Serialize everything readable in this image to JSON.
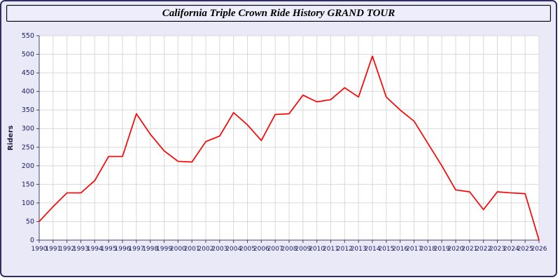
{
  "window": {
    "title": "California Triple Crown Ride History GRAND TOUR"
  },
  "chart_data": {
    "type": "line",
    "title": "California Triple Crown Ride History GRAND TOUR",
    "xlabel": "",
    "ylabel": "Riders",
    "ylim": [
      0,
      550
    ],
    "ytick_step": 50,
    "grid": true,
    "legend_position": "none",
    "line_color": "#ff0000",
    "grid_color": "#d9d9d9",
    "axis_text_color": "#1a1a5e",
    "plot_bg": "#ffffff",
    "x": [
      1990,
      1991,
      1992,
      1993,
      1994,
      1995,
      1996,
      1997,
      1998,
      1999,
      2000,
      2001,
      2002,
      2003,
      2004,
      2005,
      2006,
      2007,
      2008,
      2009,
      2010,
      2011,
      2012,
      2013,
      2014,
      2015,
      2016,
      2017,
      2018,
      2019,
      2020,
      2021,
      2022,
      2023,
      2024,
      2025,
      2026
    ],
    "series": [
      {
        "name": "Riders",
        "values": [
          50,
          90,
          127,
          127,
          160,
          225,
          225,
          340,
          285,
          240,
          212,
          210,
          265,
          280,
          343,
          310,
          268,
          338,
          340,
          390,
          372,
          378,
          410,
          385,
          495,
          385,
          350,
          320,
          260,
          200,
          135,
          130,
          82,
          130,
          127,
          125,
          0
        ]
      }
    ]
  }
}
